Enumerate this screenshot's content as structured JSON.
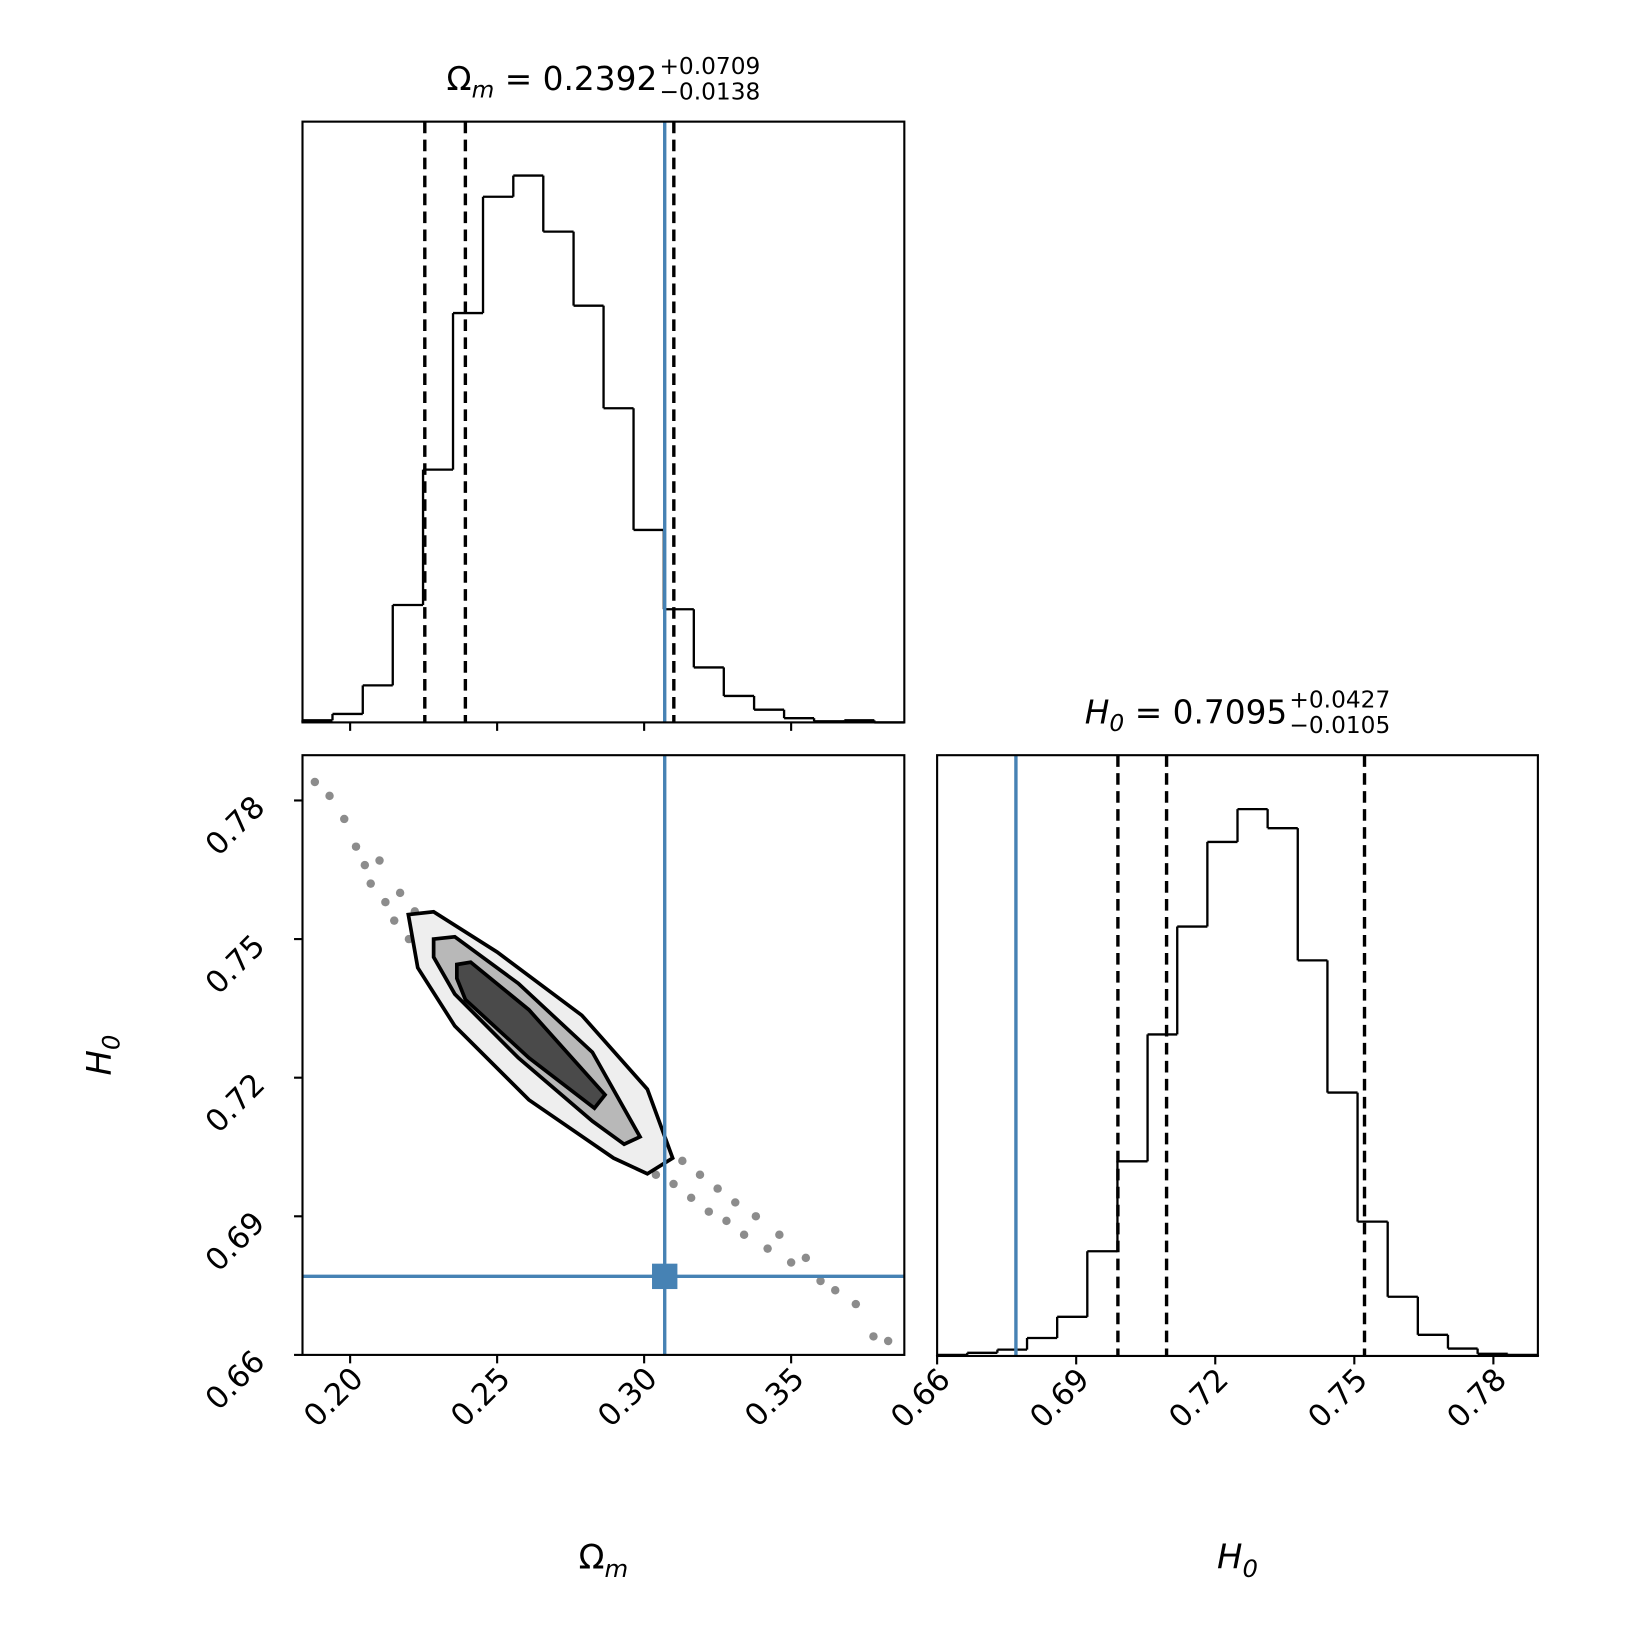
{
  "chart_data": [
    {
      "type": "histogram",
      "title": {
        "base": "Ω",
        "sub": "m",
        "value": "= 0.2392",
        "upper": "+0.0709",
        "lower": "−0.0138"
      },
      "bins": [
        0.1838,
        0.194,
        0.2043,
        0.2145,
        0.2248,
        0.235,
        0.2452,
        0.2555,
        0.2657,
        0.276,
        0.2862,
        0.2964,
        0.3067,
        0.3169,
        0.3271,
        0.3374,
        0.3476,
        0.3578,
        0.3681,
        0.3783,
        0.3885
      ],
      "values": [
        2,
        8,
        35,
        111,
        239,
        387,
        497,
        517,
        464,
        394,
        297,
        182,
        107,
        52,
        25,
        12,
        4,
        1,
        2,
        0
      ],
      "xlim": [
        0.1838,
        0.3885
      ],
      "ylim": [
        0,
        568
      ],
      "xticks": [
        0.2,
        0.25,
        0.3,
        0.35
      ],
      "quantiles": [
        0.2254,
        0.2392,
        0.3101
      ],
      "truth": 0.307,
      "color": "#000000",
      "truth_color": "#4682b4"
    },
    {
      "type": "scatter",
      "xlabel": {
        "base": "Ω",
        "sub": "m"
      },
      "ylabel": {
        "base": "H",
        "sub": "0"
      },
      "x": [
        0.188,
        0.193,
        0.198,
        0.202,
        0.205,
        0.207,
        0.21,
        0.212,
        0.215,
        0.217,
        0.22,
        0.222,
        0.225,
        0.228,
        0.23,
        0.233,
        0.236,
        0.238,
        0.241,
        0.244,
        0.246,
        0.249,
        0.252,
        0.255,
        0.257,
        0.26,
        0.263,
        0.266,
        0.268,
        0.271,
        0.274,
        0.277,
        0.28,
        0.283,
        0.286,
        0.289,
        0.292,
        0.295,
        0.298,
        0.301,
        0.304,
        0.307,
        0.31,
        0.313,
        0.316,
        0.319,
        0.322,
        0.325,
        0.328,
        0.331,
        0.334,
        0.338,
        0.342,
        0.346,
        0.35,
        0.355,
        0.36,
        0.365,
        0.372,
        0.378,
        0.383
      ],
      "y": [
        0.784,
        0.781,
        0.776,
        0.77,
        0.766,
        0.762,
        0.767,
        0.758,
        0.754,
        0.76,
        0.75,
        0.756,
        0.745,
        0.751,
        0.742,
        0.748,
        0.738,
        0.745,
        0.735,
        0.741,
        0.731,
        0.738,
        0.73,
        0.736,
        0.726,
        0.733,
        0.722,
        0.729,
        0.718,
        0.726,
        0.716,
        0.722,
        0.711,
        0.718,
        0.709,
        0.714,
        0.705,
        0.712,
        0.702,
        0.708,
        0.699,
        0.705,
        0.697,
        0.702,
        0.694,
        0.699,
        0.691,
        0.696,
        0.689,
        0.693,
        0.686,
        0.69,
        0.683,
        0.686,
        0.68,
        0.681,
        0.676,
        0.674,
        0.671,
        0.664,
        0.663
      ],
      "contours": [
        {
          "x": [
            0.2198,
            0.2284,
            0.25,
            0.2788,
            0.3011,
            0.3097,
            0.3011,
            0.2896,
            0.2608,
            0.2356,
            0.223
          ],
          "y": [
            0.7553,
            0.7559,
            0.7472,
            0.7335,
            0.7175,
            0.7026,
            0.6992,
            0.7026,
            0.7152,
            0.7312,
            0.7438
          ]
        },
        {
          "x": [
            0.2284,
            0.2356,
            0.2572,
            0.2824,
            0.2986,
            0.2932,
            0.2824,
            0.2572,
            0.2356,
            0.2284
          ],
          "y": [
            0.75,
            0.7505,
            0.7404,
            0.7255,
            0.7072,
            0.7056,
            0.7106,
            0.7243,
            0.7381,
            0.7461
          ]
        },
        {
          "x": [
            0.2363,
            0.241,
            0.2608,
            0.2867,
            0.2831,
            0.2608,
            0.2392,
            0.2363
          ],
          "y": [
            0.7445,
            0.745,
            0.7347,
            0.7163,
            0.7134,
            0.7243,
            0.7369,
            0.7415
          ]
        }
      ],
      "contour_fills": [
        "#eeeeee",
        "#b8b8b8",
        "#4a4a4a"
      ],
      "truth": [
        0.307,
        0.677
      ],
      "xlim": [
        0.1838,
        0.3885
      ],
      "ylim": [
        0.66,
        0.7898
      ],
      "xticks": [
        {
          "value": 0.2,
          "label": "0.20"
        },
        0.25,
        {
          "value": 0.3,
          "label": "0.30"
        },
        0.35
      ],
      "yticks": [
        0.66,
        0.69,
        0.72,
        0.75,
        0.78
      ],
      "color": "#000000",
      "truth_color": "#4682b4"
    },
    {
      "type": "histogram",
      "title": {
        "base": "H",
        "sub": "0",
        "value": "= 0.7095",
        "upper": "+0.0427",
        "lower": "−0.0105"
      },
      "xlabel": {
        "base": "H",
        "sub": "0"
      },
      "bins": [
        0.66,
        0.6665,
        0.673,
        0.6794,
        0.6859,
        0.6924,
        0.6989,
        0.7054,
        0.7118,
        0.7183,
        0.7248,
        0.7313,
        0.7378,
        0.7442,
        0.7507,
        0.7572,
        0.7637,
        0.7702,
        0.7766,
        0.7831,
        0.7896
      ],
      "values": [
        1,
        3,
        6,
        17,
        37,
        99,
        184,
        304,
        406,
        486,
        517,
        499,
        374,
        249,
        127,
        56,
        20,
        7,
        2,
        1
      ],
      "xlim": [
        0.66,
        0.7896
      ],
      "ylim": [
        0,
        568
      ],
      "xticks": [
        0.66,
        0.69,
        0.72,
        0.75,
        0.78
      ],
      "quantiles": [
        0.699,
        0.7095,
        0.7522
      ],
      "truth": 0.677,
      "color": "#000000",
      "truth_color": "#4682b4"
    }
  ]
}
